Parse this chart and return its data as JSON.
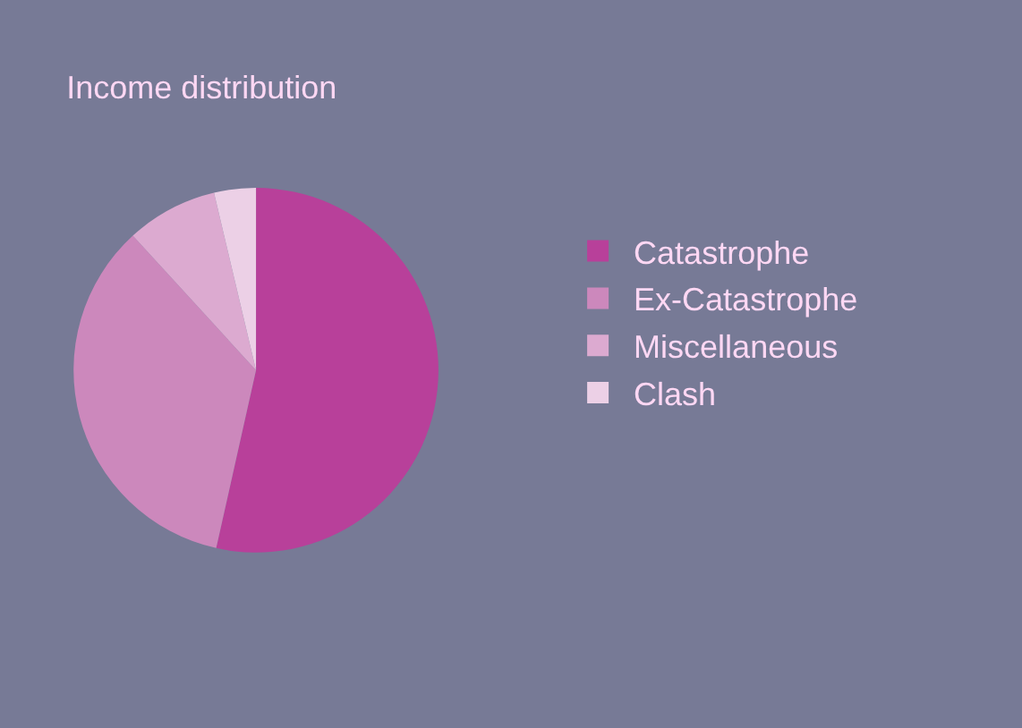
{
  "chart_data": {
    "type": "pie",
    "title": "Income distribution",
    "categories": [
      "Catastrophe",
      "Ex-Catastrophe",
      "Miscellaneous",
      "Clash"
    ],
    "values": [
      53.5,
      34.7,
      8.1,
      3.7
    ],
    "colors": [
      "#b8409a",
      "#cc88bc",
      "#dcaad0",
      "#ecd0e6"
    ],
    "legend": "right"
  }
}
